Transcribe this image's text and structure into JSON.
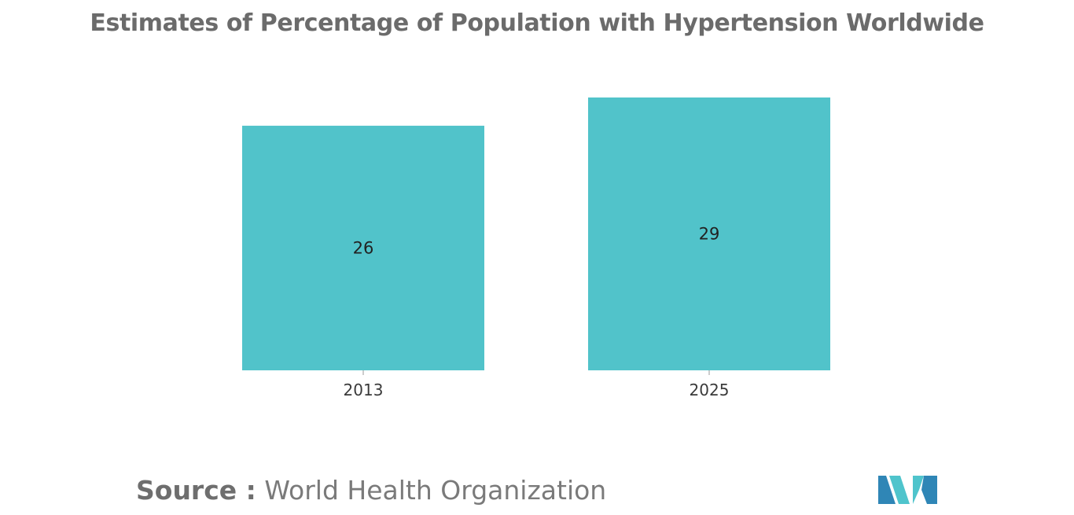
{
  "chart_data": {
    "type": "bar",
    "title": "Estimates of Percentage of Population with Hypertension Worldwide",
    "categories": [
      "2013",
      "2025"
    ],
    "values": [
      26,
      29
    ],
    "xlabel": "",
    "ylabel": "",
    "ylim": [
      0,
      29
    ],
    "grid": false,
    "legend": "none",
    "data_labels": [
      "26",
      "29"
    ]
  },
  "source": {
    "label": "Source :",
    "value": "World Health Organization"
  },
  "colors": {
    "bar": "#51c3ca",
    "title": "#6b6b6b",
    "logo_dark": "#2f86b6",
    "logo_light": "#4fc4cc"
  },
  "logo": {
    "icon": "mordor-logo-icon"
  }
}
